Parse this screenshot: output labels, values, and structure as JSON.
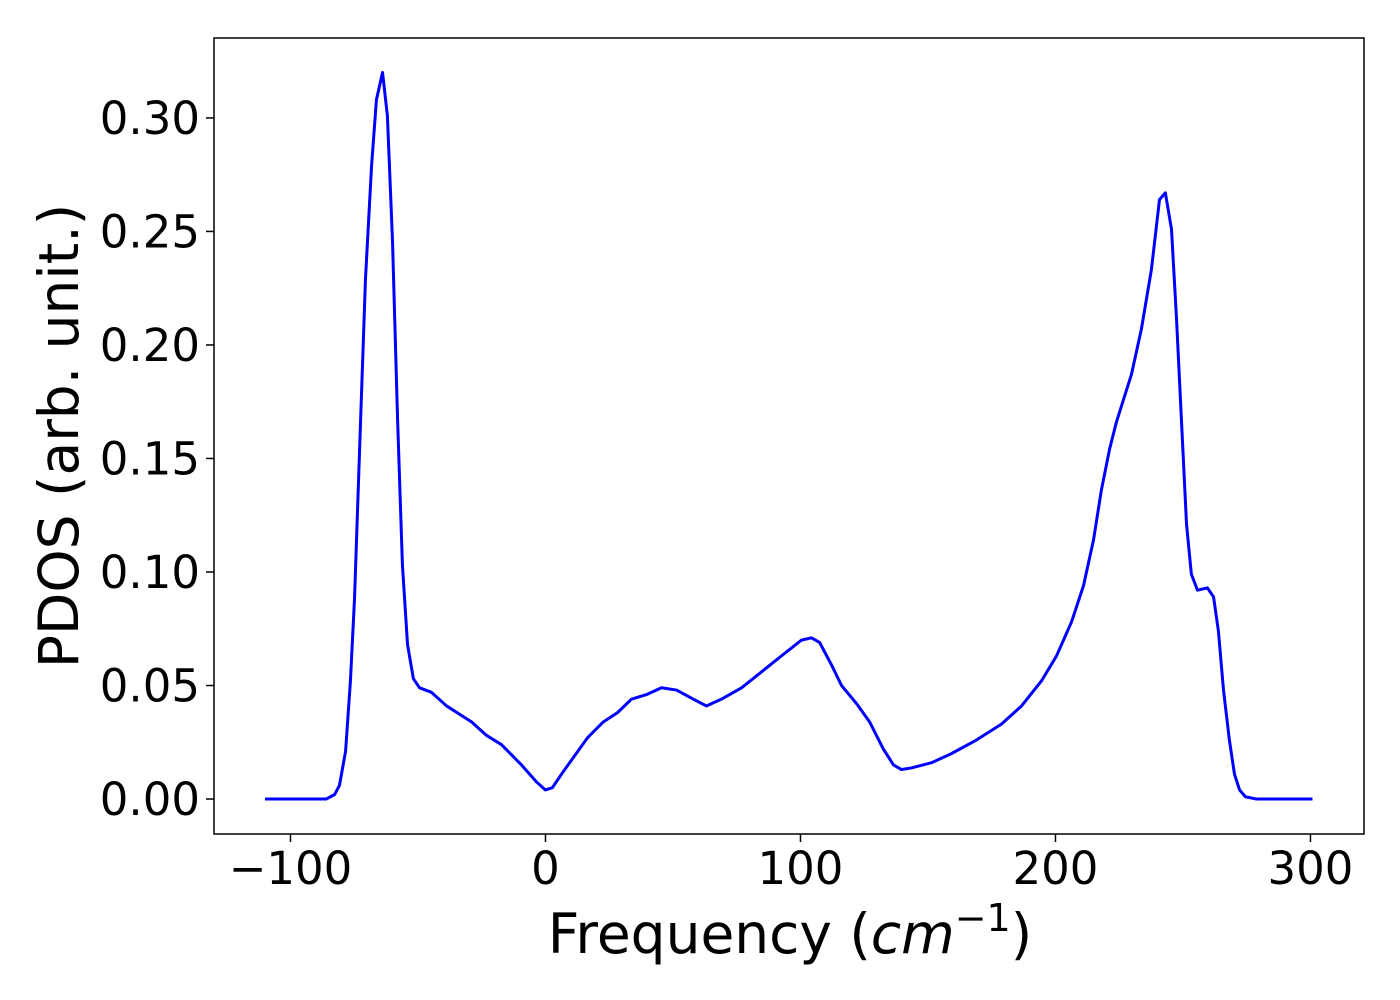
{
  "chart_data": {
    "type": "line",
    "xlabel": [
      "Frequency (",
      "cm",
      "−1",
      ")"
    ],
    "ylabel": "PDOS (arb. unit.)",
    "x": [
      -110,
      -86,
      -82.7,
      -80.8,
      -78.4,
      -76.5,
      -74.9,
      -72.9,
      -70.6,
      -68.2,
      -66.3,
      -63.9,
      -62.0,
      -60.0,
      -58.0,
      -56.1,
      -54.1,
      -51.8,
      -49.4,
      -44.7,
      -38.8,
      -29.0,
      -23.1,
      -17.3,
      -9.4,
      -3.5,
      0,
      2.7,
      6.3,
      11.4,
      16.5,
      22.7,
      28.2,
      33.7,
      39.6,
      45.5,
      51.4,
      58.0,
      63.1,
      69.0,
      76.9,
      84.7,
      92.5,
      100.4,
      104.3,
      107.5,
      112.2,
      116.1,
      122.0,
      127.1,
      132.5,
      136.5,
      139.6,
      143.5,
      151.4,
      159.2,
      169.0,
      178.8,
      186.7,
      194.5,
      200.4,
      206.3,
      211.0,
      214.9,
      218.0,
      221.2,
      223.9,
      226.7,
      229.8,
      233.7,
      237.6,
      240.8,
      243.1,
      245.5,
      247.5,
      249.4,
      251.4,
      253.3,
      255.7,
      259.6,
      262.0,
      263.9,
      265.9,
      268.2,
      270.2,
      272.2,
      274.5,
      278.8,
      300.8
    ],
    "series": [
      {
        "name": "PDOS",
        "color": "#0000ff",
        "values": [
          0,
          0,
          0.002,
          0.006,
          0.021,
          0.052,
          0.088,
          0.154,
          0.229,
          0.279,
          0.308,
          0.32,
          0.301,
          0.246,
          0.167,
          0.103,
          0.068,
          0.053,
          0.049,
          0.047,
          0.041,
          0.034,
          0.028,
          0.024,
          0.015,
          0.0075,
          0.004,
          0.005,
          0.011,
          0.019,
          0.027,
          0.034,
          0.038,
          0.044,
          0.046,
          0.049,
          0.048,
          0.044,
          0.041,
          0.044,
          0.049,
          0.056,
          0.063,
          0.07,
          0.071,
          0.069,
          0.059,
          0.05,
          0.042,
          0.034,
          0.022,
          0.015,
          0.013,
          0.0137,
          0.016,
          0.02,
          0.026,
          0.033,
          0.041,
          0.052,
          0.063,
          0.078,
          0.094,
          0.114,
          0.136,
          0.154,
          0.166,
          0.176,
          0.187,
          0.207,
          0.233,
          0.264,
          0.267,
          0.251,
          0.211,
          0.167,
          0.121,
          0.099,
          0.092,
          0.093,
          0.089,
          0.074,
          0.048,
          0.026,
          0.011,
          0.004,
          0.001,
          0,
          0
        ]
      }
    ],
    "xlim": [
      -130,
      321
    ],
    "ylim": [
      -0.0154,
      0.3352
    ],
    "xticks": [
      {
        "value": -100,
        "label": "−100"
      },
      0,
      100,
      200,
      300
    ],
    "yticks": [
      {
        "value": 0,
        "label": "0.00"
      },
      {
        "value": 0.05,
        "label": "0.05"
      },
      {
        "value": 0.1,
        "label": "0.10"
      },
      {
        "value": 0.15,
        "label": "0.15"
      },
      {
        "value": 0.2,
        "label": "0.20"
      },
      {
        "value": 0.25,
        "label": "0.25"
      },
      {
        "value": 0.3,
        "label": "0.30"
      }
    ],
    "grid": false
  }
}
